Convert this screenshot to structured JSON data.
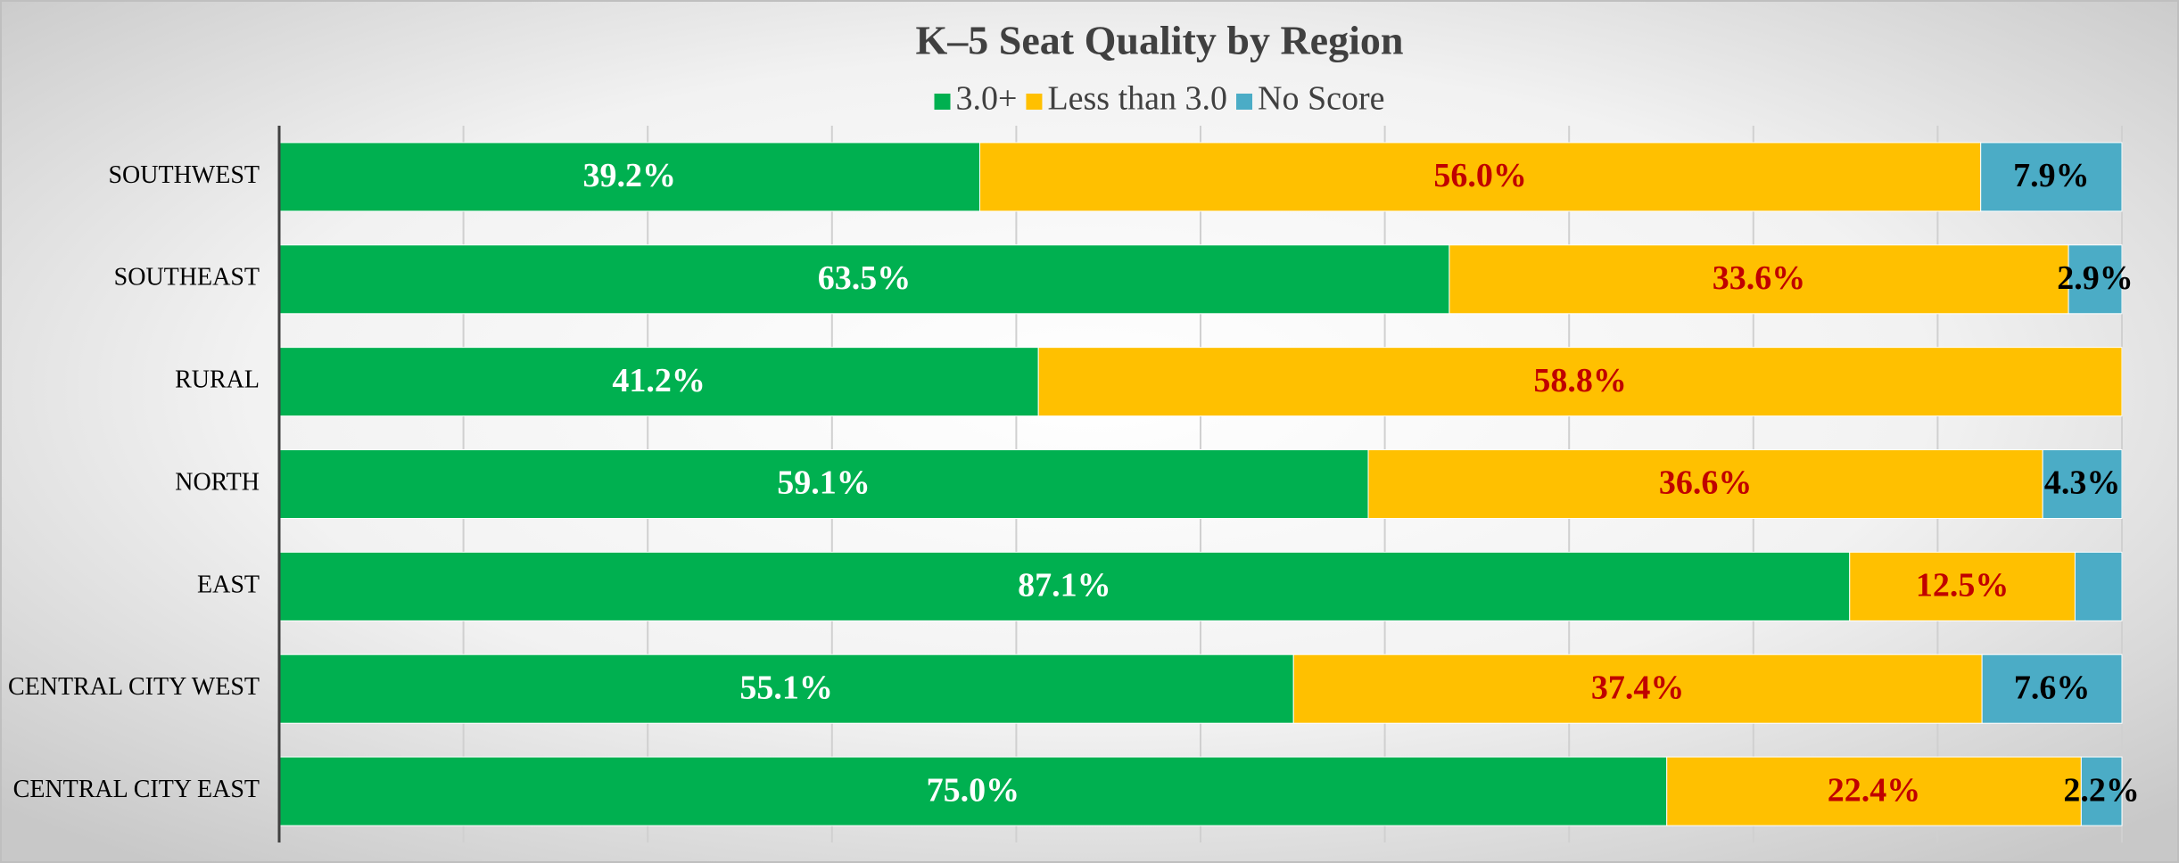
{
  "chart_data": {
    "type": "stacked_percent_bar",
    "title": "K–5 Seat Quality by Region",
    "categories": [
      "SOUTHWEST",
      "SOUTHEAST",
      "RURAL",
      "NORTH",
      "EAST",
      "CENTRAL CITY WEST",
      "CENTRAL CITY EAST"
    ],
    "series": [
      {
        "name": "3.0+",
        "color": "#00b050",
        "label_color": "#ffffff",
        "values": [
          39.2,
          63.5,
          41.2,
          59.1,
          87.1,
          55.1,
          75.0
        ],
        "value_labels": [
          "39.2%",
          "63.5%",
          "41.2%",
          "59.1%",
          "87.1%",
          "55.1%",
          "75.0%"
        ]
      },
      {
        "name": "Less than 3.0",
        "color": "#ffc000",
        "label_color": "#c00000",
        "values": [
          56.0,
          33.6,
          58.8,
          36.6,
          12.5,
          37.4,
          22.4
        ],
        "value_labels": [
          "56.0%",
          "33.6%",
          "58.8%",
          "36.6%",
          "12.5%",
          "37.4%",
          "22.4%"
        ]
      },
      {
        "name": "No Score",
        "color": "#4bacc6",
        "label_color": "#000000",
        "values": [
          7.9,
          2.9,
          0,
          4.3,
          2.6,
          7.6,
          2.2
        ],
        "value_labels": [
          "7.9%",
          "2.9%",
          null,
          "4.3%",
          null,
          "7.6%",
          "2.2%"
        ]
      }
    ],
    "xlim": [
      0,
      100
    ],
    "xticks": [
      0,
      10,
      20,
      30,
      40,
      50,
      60,
      70,
      80,
      90,
      100
    ],
    "grid": true,
    "legend": "top"
  }
}
